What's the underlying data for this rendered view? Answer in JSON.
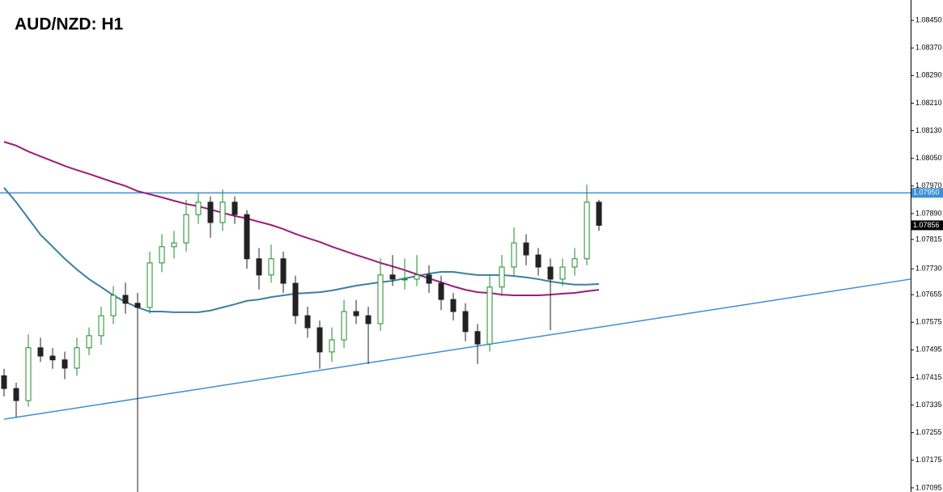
{
  "chart_data": {
    "type": "candlestick",
    "title": "AUD/NZD: H1",
    "open": [
      1.0742,
      1.07383,
      1.07348,
      1.07501,
      1.07477,
      1.07466,
      1.07442,
      1.07501,
      1.07536,
      1.07594,
      1.07653,
      1.0763,
      1.07618,
      1.07747,
      1.07794,
      1.07805,
      1.07887,
      1.07923,
      1.07864,
      1.07923,
      1.07887,
      1.07759,
      1.07712,
      1.07759,
      1.07688,
      1.07594,
      1.07559,
      1.07489,
      1.07524,
      1.07606,
      1.07594,
      1.07571,
      1.07712,
      1.077,
      1.077,
      1.07712,
      1.07688,
      1.07641,
      1.07606,
      1.07548,
      1.07512,
      1.07677,
      1.07735,
      1.07805,
      1.0777,
      1.07735,
      1.077,
      1.07735,
      1.07759,
      1.07923
    ],
    "high": [
      1.0744,
      1.074,
      1.0754,
      1.0753,
      1.075,
      1.0749,
      1.0753,
      1.0756,
      1.0762,
      1.0768,
      1.0769,
      1.0766,
      1.0778,
      1.0783,
      1.0784,
      1.0793,
      1.0795,
      1.0794,
      1.0796,
      1.0794,
      1.079,
      1.0779,
      1.078,
      1.0778,
      1.0771,
      1.0762,
      1.0758,
      1.0756,
      1.0764,
      1.0764,
      1.0762,
      1.0776,
      1.0777,
      1.0776,
      1.0777,
      1.0774,
      1.0771,
      1.0766,
      1.0763,
      1.0757,
      1.0771,
      1.0777,
      1.0785,
      1.0783,
      1.0779,
      1.0776,
      1.0776,
      1.0779,
      1.07974,
      1.0793
    ],
    "low": [
      1.0736,
      1.073,
      1.0733,
      1.0746,
      1.0744,
      1.0741,
      1.0742,
      1.0748,
      1.0751,
      1.0757,
      1.076,
      1.07083,
      1.076,
      1.0772,
      1.0776,
      1.0778,
      1.0786,
      1.0782,
      1.0784,
      1.0786,
      1.0773,
      1.0767,
      1.0769,
      1.0766,
      1.0757,
      1.0753,
      1.0744,
      1.0746,
      1.075,
      1.0757,
      1.07454,
      1.0755,
      1.0768,
      1.0767,
      1.0768,
      1.0766,
      1.0761,
      1.0758,
      1.0752,
      1.07454,
      1.0749,
      1.0765,
      1.0771,
      1.0774,
      1.0771,
      1.07552,
      1.0768,
      1.0771,
      1.0774,
      1.0784
    ],
    "close": [
      1.07383,
      1.07348,
      1.07501,
      1.07477,
      1.07466,
      1.07442,
      1.07501,
      1.07536,
      1.07594,
      1.07653,
      1.0763,
      1.07618,
      1.07747,
      1.07794,
      1.07805,
      1.07887,
      1.07923,
      1.07864,
      1.07923,
      1.07887,
      1.07759,
      1.07712,
      1.07759,
      1.07688,
      1.07594,
      1.07559,
      1.07489,
      1.07524,
      1.07606,
      1.07594,
      1.07571,
      1.07712,
      1.077,
      1.077,
      1.07712,
      1.07688,
      1.07641,
      1.07606,
      1.07548,
      1.07512,
      1.07677,
      1.07735,
      1.07805,
      1.0777,
      1.07735,
      1.077,
      1.07735,
      1.07759,
      1.07923,
      1.07856
    ],
    "up_color": "#1f8a2a",
    "down_color": "#222222",
    "moving_averages": [
      {
        "color": "#3b7fa3",
        "values": [
          1.07965,
          1.07923,
          1.07876,
          1.07829,
          1.07794,
          1.07759,
          1.07728,
          1.077,
          1.07677,
          1.07653,
          1.07634,
          1.07618,
          1.07606,
          1.07606,
          1.07604,
          1.07604,
          1.07604,
          1.07609,
          1.07618,
          1.07627,
          1.07637,
          1.07641,
          1.07648,
          1.07653,
          1.07658,
          1.0766,
          1.07662,
          1.07667,
          1.07674,
          1.07681,
          1.07686,
          1.07691,
          1.07695,
          1.07702,
          1.07709,
          1.07716,
          1.07721,
          1.07721,
          1.07716,
          1.07712,
          1.07712,
          1.07712,
          1.07709,
          1.07705,
          1.077,
          1.07693,
          1.07688,
          1.07684,
          1.07684,
          1.07686
        ]
      },
      {
        "color": "#a0197a",
        "values": [
          1.08098,
          1.08087,
          1.0807,
          1.08056,
          1.08042,
          1.08028,
          1.08016,
          1.08005,
          1.07993,
          1.07981,
          1.0797,
          1.07955,
          1.07946,
          1.07937,
          1.07927,
          1.07918,
          1.07911,
          1.07902,
          1.07892,
          1.07883,
          1.07876,
          1.07866,
          1.07857,
          1.07845,
          1.07831,
          1.07819,
          1.07808,
          1.07794,
          1.07782,
          1.0777,
          1.07759,
          1.07747,
          1.07737,
          1.07726,
          1.07714,
          1.07702,
          1.07691,
          1.07679,
          1.07669,
          1.07662,
          1.0766,
          1.07655,
          1.07653,
          1.07653,
          1.07653,
          1.07655,
          1.07658,
          1.0766,
          1.07665,
          1.07669
        ]
      }
    ],
    "resistance": {
      "value": 1.0795,
      "label": "1.07950",
      "color": "#3d8fd6"
    },
    "trendline": {
      "values": [
        1.07294,
        1.077
      ],
      "color": "#3d8fd6"
    },
    "last_price": {
      "value": 1.07856,
      "label": "1.07856"
    },
    "ylim": [
      1.07083,
      1.08509
    ],
    "yticks": [
      {
        "value": 1.0845,
        "label": "1.08450"
      },
      {
        "value": 1.0837,
        "label": "1.08370"
      },
      {
        "value": 1.0829,
        "label": "1.08290"
      },
      {
        "value": 1.0821,
        "label": "1.08210"
      },
      {
        "value": 1.0813,
        "label": "1.08130"
      },
      {
        "value": 1.0805,
        "label": "1.08050"
      },
      {
        "value": 1.0797,
        "label": "1.07970"
      },
      {
        "value": 1.0789,
        "label": "1.07890"
      },
      1.07815,
      {
        "value": 1.0773,
        "label": "1.07730"
      },
      1.07655,
      1.07575,
      1.07495,
      1.07415,
      1.07335,
      1.07255,
      1.07175,
      1.07095
    ]
  }
}
